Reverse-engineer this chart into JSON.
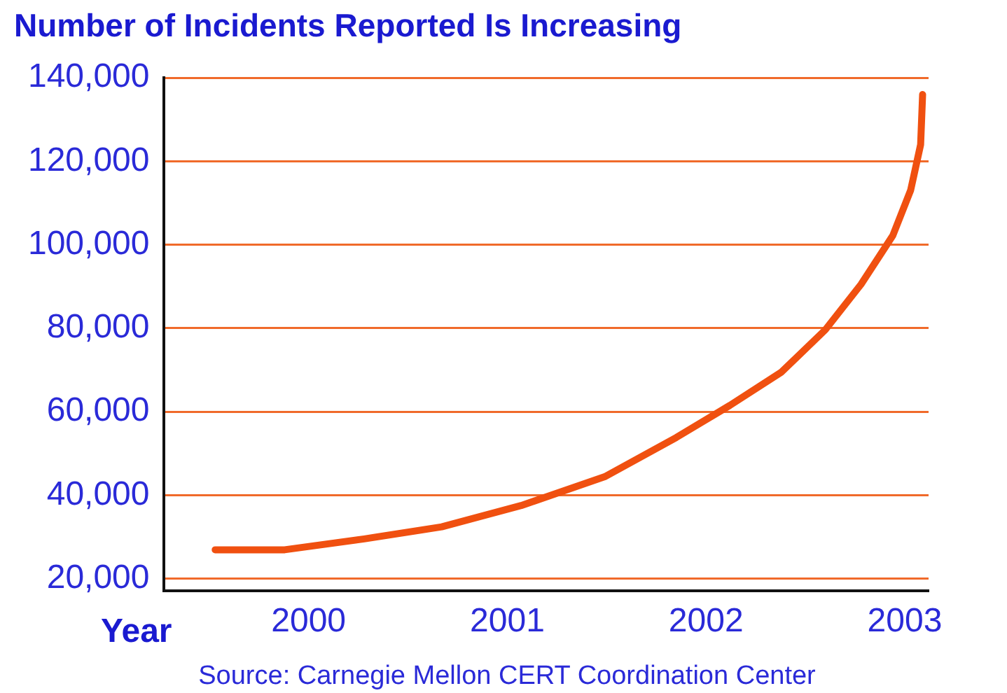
{
  "chart_data": {
    "type": "line",
    "title": "Number of Incidents Reported Is Increasing",
    "xlabel": "Year",
    "annotations": [
      "Source: Carnegie Mellon CERT Coordination Center"
    ],
    "x": [
      1999.53,
      1999.88,
      2000.28,
      2000.67,
      2001.07,
      2001.49,
      2001.85,
      2002.12,
      2002.38,
      2002.6,
      2002.78,
      2002.94,
      2003.03,
      2003.08,
      2003.09
    ],
    "series": [
      {
        "color": "#f05010",
        "values": [
          26900,
          26900,
          29500,
          32400,
          37500,
          44400,
          53800,
          61500,
          69500,
          79600,
          90500,
          102200,
          113100,
          124000,
          136000
        ]
      }
    ],
    "xlim": [
      1999.27,
      2003.12
    ],
    "xticks": [
      2000,
      2001,
      2002,
      2003
    ],
    "ylim": [
      17000,
      140000
    ],
    "yticks": [
      {
        "value": 20000,
        "label": "20,000"
      },
      {
        "value": 40000,
        "label": "40,000"
      },
      {
        "value": 60000,
        "label": "60,000"
      },
      {
        "value": 80000,
        "label": "80,000"
      },
      {
        "value": 100000,
        "label": "100,000"
      },
      {
        "value": 120000,
        "label": "120,000"
      },
      {
        "value": 140000,
        "label": "140,000"
      }
    ],
    "grid": "y",
    "legend": false,
    "marker": "none",
    "line_style": "solid"
  }
}
